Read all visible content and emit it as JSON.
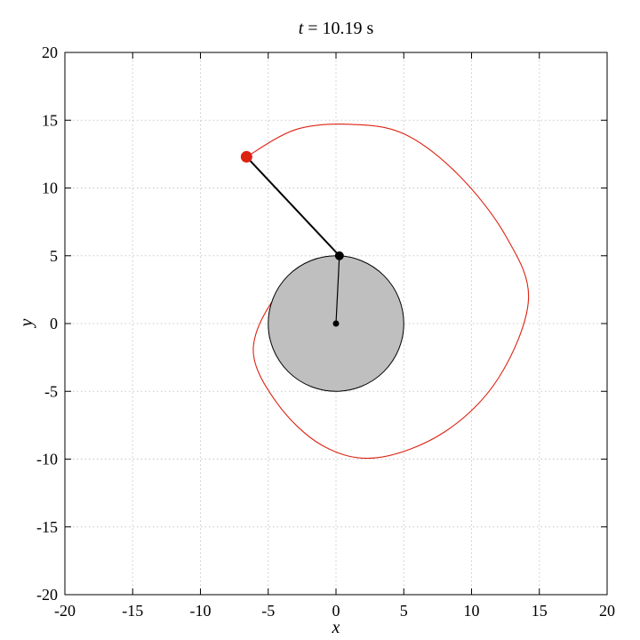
{
  "chart_data": {
    "type": "line",
    "title": {
      "var": "t",
      "rest": " = 10.19 s"
    },
    "xlabel": "x",
    "ylabel": "y",
    "xlim": [
      -20,
      20
    ],
    "ylim": [
      -20,
      20
    ],
    "xticks": [
      -20,
      -15,
      -10,
      -5,
      0,
      5,
      10,
      15,
      20
    ],
    "yticks": [
      -20,
      -15,
      -10,
      -5,
      0,
      5,
      10,
      15,
      20
    ],
    "grid": true,
    "disk": {
      "center": [
        0,
        0
      ],
      "radius": 5,
      "fill": "#bfbfbf",
      "stroke": "#000000"
    },
    "disk_center_dot": [
      0,
      0
    ],
    "attach_point": [
      0.25,
      5.0
    ],
    "mass": [
      -6.6,
      12.3
    ],
    "mass_color": "#dd2211",
    "string_color": "#000000",
    "trajectory_color": "#dd2211",
    "trajectory": {
      "type": "involute_of_circle",
      "radius": 5,
      "series": {
        "x": [
          -6.6,
          -3.0,
          1.0,
          5.0,
          9.0,
          12.5,
          14.2,
          12.0,
          8.0,
          3.0,
          -1.0,
          -4.4,
          -6.1,
          -4.0,
          0.0,
          0.25
        ],
        "y": [
          12.3,
          14.3,
          14.7,
          14.0,
          11.0,
          6.5,
          1.8,
          -4.0,
          -8.0,
          -9.9,
          -9.0,
          -5.8,
          -1.8,
          2.5,
          4.8,
          5.0
        ]
      }
    }
  }
}
